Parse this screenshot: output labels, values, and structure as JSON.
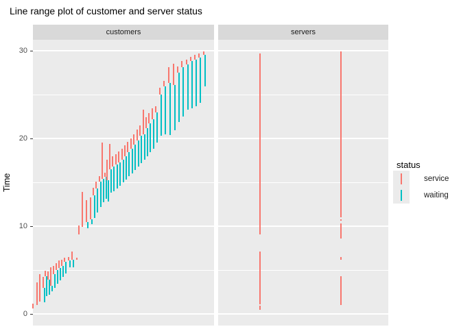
{
  "title": "Line range plot of customer and server status",
  "y_axis": {
    "label": "Time",
    "ticks": [
      0,
      10,
      20,
      30
    ],
    "minor_ticks": [
      5,
      15,
      25
    ]
  },
  "facets": [
    {
      "label": "customers"
    },
    {
      "label": "servers"
    }
  ],
  "legend": {
    "title": "status",
    "items": [
      {
        "label": "service",
        "color": "#F8766D"
      },
      {
        "label": "waiting",
        "color": "#00BFC4"
      }
    ]
  },
  "colors": {
    "service": "#F8766D",
    "waiting": "#00BFC4",
    "panel_background": "#EBEBEB",
    "strip_background": "#D9D9D9",
    "gridline": "#FFFFFF",
    "axis_text": "#4D4D4D"
  },
  "chart_data": {
    "type": "linerange",
    "title": "Line range plot of customer and server status",
    "xlabel": "",
    "ylabel": "Time",
    "ylim": [
      -1.33,
      31.25
    ],
    "yticks": [
      0,
      10,
      20,
      30
    ],
    "yminor": [
      5,
      15,
      25
    ],
    "grid": true,
    "legend_position": "right",
    "status_colors": {
      "service": "#F8766D",
      "waiting": "#00BFC4"
    },
    "facet_customers": {
      "label": "customers",
      "columns_format": [
        "x_fraction_of_panel",
        "arrival_time",
        "service_start_time",
        "departure_time"
      ],
      "note_semantics": "waiting = arrival to service start (teal), service = service start to departure (salmon)",
      "columns": [
        [
          0.003,
          0.6,
          0.6,
          1.15
        ],
        [
          0.024,
          1.0,
          1.0,
          3.6
        ],
        [
          0.042,
          1.4,
          1.4,
          4.5
        ],
        [
          0.059,
          1.3,
          3.0,
          4.2
        ],
        [
          0.072,
          2.05,
          4.3,
          4.9
        ],
        [
          0.085,
          2.2,
          3.9,
          4.85
        ],
        [
          0.103,
          2.6,
          3.2,
          5.3
        ],
        [
          0.117,
          3.0,
          4.5,
          5.5
        ],
        [
          0.133,
          3.4,
          5.0,
          5.8
        ],
        [
          0.148,
          3.8,
          5.2,
          6.1
        ],
        [
          0.163,
          4.2,
          5.5,
          6.2
        ],
        [
          0.178,
          4.6,
          5.9,
          6.4
        ],
        [
          0.2,
          5.3,
          6.1,
          6.5
        ],
        [
          0.219,
          5.3,
          6.2,
          7.1
        ],
        [
          0.244,
          6.15,
          6.15,
          6.4
        ],
        [
          0.258,
          9.1,
          9.1,
          10.1
        ],
        [
          0.277,
          9.9,
          9.9,
          13.9
        ],
        [
          0.298,
          9.8,
          10.5,
          13.0
        ],
        [
          0.321,
          10.2,
          10.8,
          13.3
        ],
        [
          0.338,
          10.9,
          13.5,
          14.4
        ],
        [
          0.352,
          11.6,
          14.3,
          15.1
        ],
        [
          0.369,
          12.2,
          15.1,
          15.7
        ],
        [
          0.384,
          12.7,
          15.4,
          19.5
        ],
        [
          0.4,
          13.1,
          15.6,
          16.1
        ],
        [
          0.412,
          12.8,
          15.2,
          17.6
        ],
        [
          0.428,
          13.8,
          16.5,
          19.4
        ],
        [
          0.444,
          14.0,
          16.8,
          18.0
        ],
        [
          0.461,
          14.3,
          17.0,
          18.2
        ],
        [
          0.477,
          14.6,
          17.3,
          18.5
        ],
        [
          0.494,
          15.0,
          17.6,
          18.8
        ],
        [
          0.51,
          15.3,
          18.0,
          19.2
        ],
        [
          0.527,
          15.7,
          18.4,
          19.6
        ],
        [
          0.543,
          16.0,
          18.8,
          20.0
        ],
        [
          0.561,
          16.4,
          19.3,
          20.5
        ],
        [
          0.577,
          16.8,
          19.8,
          21.0
        ],
        [
          0.595,
          17.2,
          20.3,
          21.5
        ],
        [
          0.612,
          17.6,
          20.5,
          23.3
        ],
        [
          0.629,
          18.0,
          21.2,
          22.4
        ],
        [
          0.645,
          18.4,
          21.7,
          22.9
        ],
        [
          0.663,
          18.8,
          22.2,
          23.4
        ],
        [
          0.681,
          19.5,
          23.0,
          23.7
        ],
        [
          0.704,
          20.3,
          25.0,
          25.8
        ],
        [
          0.728,
          20.5,
          25.9,
          26.6
        ],
        [
          0.752,
          20.4,
          26.3,
          28.1
        ],
        [
          0.778,
          20.9,
          26.1,
          28.5
        ],
        [
          0.802,
          21.9,
          27.5,
          28.2
        ],
        [
          0.826,
          22.5,
          28.1,
          28.8
        ],
        [
          0.85,
          23.3,
          28.4,
          29.0
        ],
        [
          0.874,
          23.4,
          28.8,
          29.3
        ],
        [
          0.898,
          23.7,
          29.0,
          29.5
        ],
        [
          0.921,
          24.1,
          29.2,
          29.7
        ],
        [
          0.946,
          25.9,
          29.5,
          29.9
        ]
      ]
    },
    "facet_servers": {
      "label": "servers",
      "servers_format": [
        "x_fraction_of_panel",
        "service_busy_periods[start,end]"
      ],
      "servers": [
        {
          "x": 0.246,
          "service_periods": [
            [
              0.5,
              0.9
            ],
            [
              1.1,
              7.1
            ],
            [
              9.1,
              29.7
            ]
          ]
        },
        {
          "x": 0.722,
          "service_periods": [
            [
              1.0,
              4.3
            ],
            [
              6.2,
              6.5
            ],
            [
              8.6,
              10.3
            ],
            [
              10.6,
              10.8
            ],
            [
              11.0,
              29.9
            ]
          ]
        }
      ]
    }
  }
}
